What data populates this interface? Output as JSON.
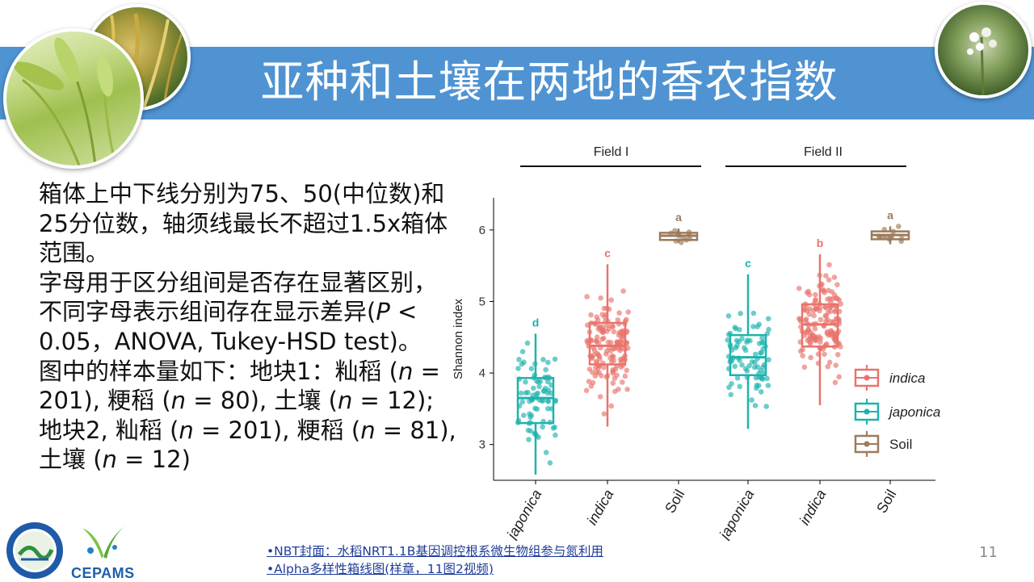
{
  "slide": {
    "title": "亚种和土壤在两地的香农指数",
    "page_number": "11"
  },
  "description": {
    "p1": "箱体上中下线分别为75、50(中位数)和25分位数，轴须线最长不超过1.5x箱体范围。",
    "p2_a": "字母用于区分组间是否存在显著区别，不同字母表示组间存在显示差异(",
    "p2_p": "P",
    "p2_b": " < 0.05，ANOVA, Tukey-HSD test)。",
    "p3_a": "图中的样本量如下：地块1：籼稻 (",
    "n1": "n",
    "p3_b": " = 201), 粳稻 (",
    "n2": "n",
    "p3_c": " = 80), 土壤 (",
    "n3": "n",
    "p3_d": " = 12); 地块2, 籼稻 (",
    "n4": "n",
    "p3_e": " = 201), 粳稻 (",
    "n5": "n",
    "p3_f": " = 81), 土壤 (",
    "n6": "n",
    "p3_g": " = 12)"
  },
  "links": {
    "link1": "•NBT封面：水稻NRT1.1B基因调控根系微生物组参与氮利用",
    "link2": "•Alpha多样性箱线图(样章，11图2视频)"
  },
  "logos": {
    "cepams": "CEPAMS"
  },
  "colors": {
    "banner": "#4f93d2",
    "indica": "#e8736c",
    "japonica": "#1fb2ad",
    "soil": "#9c7b5c"
  },
  "chart_data": {
    "type": "box",
    "ylabel": "Shannon index",
    "ylim": [
      2.5,
      6.45
    ],
    "yticks": [
      3,
      4,
      5,
      6
    ],
    "facets": [
      {
        "label": "Field I",
        "groups": [
          0,
          1,
          2
        ]
      },
      {
        "label": "Field II",
        "groups": [
          3,
          4,
          5
        ]
      }
    ],
    "groups": [
      {
        "x_label": "japonica",
        "series": "japonica",
        "field": "Field I",
        "n": 80,
        "min": 2.58,
        "q1": 3.3,
        "median": 3.65,
        "q3": 3.93,
        "max": 4.55,
        "letter": "d"
      },
      {
        "x_label": "indica",
        "series": "indica",
        "field": "Field I",
        "n": 201,
        "min": 3.25,
        "q1": 4.12,
        "median": 4.38,
        "q3": 4.7,
        "max": 5.52,
        "letter": "c"
      },
      {
        "x_label": "Soil",
        "series": "Soil",
        "field": "Field I",
        "n": 12,
        "min": 5.82,
        "q1": 5.86,
        "median": 5.92,
        "q3": 5.96,
        "max": 6.02,
        "letter": "a"
      },
      {
        "x_label": "japonica",
        "series": "japonica",
        "field": "Field II",
        "n": 81,
        "min": 3.22,
        "q1": 3.97,
        "median": 4.22,
        "q3": 4.53,
        "max": 5.38,
        "letter": "c"
      },
      {
        "x_label": "indica",
        "series": "indica",
        "field": "Field II",
        "n": 201,
        "min": 3.55,
        "q1": 4.37,
        "median": 4.68,
        "q3": 4.96,
        "max": 5.66,
        "letter": "b"
      },
      {
        "x_label": "Soil",
        "series": "Soil",
        "field": "Field II",
        "n": 12,
        "min": 5.8,
        "q1": 5.87,
        "median": 5.93,
        "q3": 5.98,
        "max": 6.05,
        "letter": "a"
      }
    ],
    "legend": {
      "position": "right-inside",
      "entries": [
        {
          "name": "indica",
          "italic": true,
          "color": "#e8736c"
        },
        {
          "name": "japonica",
          "italic": true,
          "color": "#1fb2ad"
        },
        {
          "name": "Soil",
          "italic": false,
          "color": "#9c7b5c"
        }
      ]
    },
    "grid": false
  }
}
